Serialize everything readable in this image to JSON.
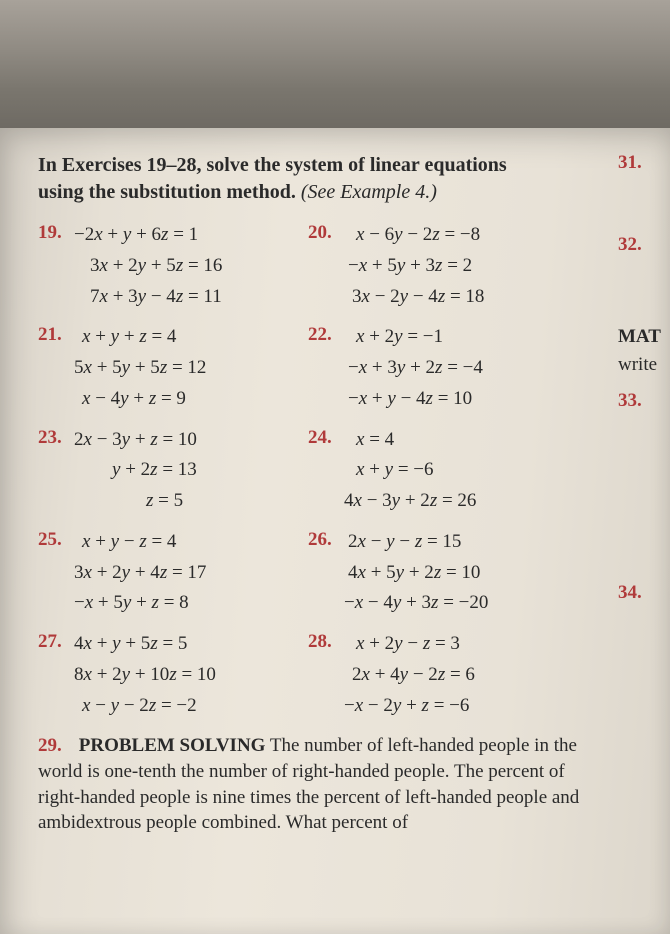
{
  "intro": {
    "line1a": "In Exercises 19–28, solve the system of linear equations",
    "line2a": "using the substitution method.",
    "line2b": "(See Example 4.)"
  },
  "problems": {
    "p19": {
      "num": "19.",
      "eq1": "−2x + y + 6z = 1",
      "eq2": "3x + 2y + 5z = 16",
      "eq3": "7x + 3y − 4z = 11"
    },
    "p20": {
      "num": "20.",
      "eq1": "x − 6y − 2z = −8",
      "eq2": "−x + 5y + 3z = 2",
      "eq3": "3x − 2y − 4z = 18"
    },
    "p21": {
      "num": "21.",
      "eq1": "x + y + z = 4",
      "eq2": "5x + 5y + 5z = 12",
      "eq3": "x − 4y + z = 9"
    },
    "p22": {
      "num": "22.",
      "eq1": "x + 2y = −1",
      "eq2": "−x + 3y + 2z = −4",
      "eq3": "−x + y − 4z = 10"
    },
    "p23": {
      "num": "23.",
      "eq1": "2x − 3y + z = 10",
      "eq2": "y + 2z = 13",
      "eq3": "z = 5"
    },
    "p24": {
      "num": "24.",
      "eq1": "x = 4",
      "eq2": "x + y = −6",
      "eq3": "4x − 3y + 2z = 26"
    },
    "p25": {
      "num": "25.",
      "eq1": "x + y − z = 4",
      "eq2": "3x + 2y + 4z = 17",
      "eq3": "−x + 5y + z = 8"
    },
    "p26": {
      "num": "26.",
      "eq1": "2x − y − z = 15",
      "eq2": "4x + 5y + 2z = 10",
      "eq3": "−x − 4y + 3z = −20"
    },
    "p27": {
      "num": "27.",
      "eq1": "4x + y + 5z = 5",
      "eq2": "8x + 2y + 10z = 10",
      "eq3": "x − y − 2z = −2"
    },
    "p28": {
      "num": "28.",
      "eq1": "x + 2y − z = 3",
      "eq2": "2x + 4y − 2z = 6",
      "eq3": "−x − 2y + z = −6"
    },
    "p29": {
      "num": "29.",
      "caps": "PROBLEM SOLVING",
      "text": " The number of left-handed people in the world is one-tenth the number of right-handed people. The percent of right-handed people is nine times the percent of left-handed people and ambidextrous people combined. What percent of"
    }
  },
  "side": {
    "s31": "31.",
    "s32": "32.",
    "mat": "MAT",
    "write": "write",
    "s33": "33.",
    "s34": "34."
  },
  "colors": {
    "problem_num": "#b03a3a",
    "text": "#2a2a2a",
    "page_bg": "#e8e2d7"
  },
  "typography": {
    "body_family": "Times New Roman",
    "body_size_pt": 14,
    "num_weight": "bold"
  }
}
